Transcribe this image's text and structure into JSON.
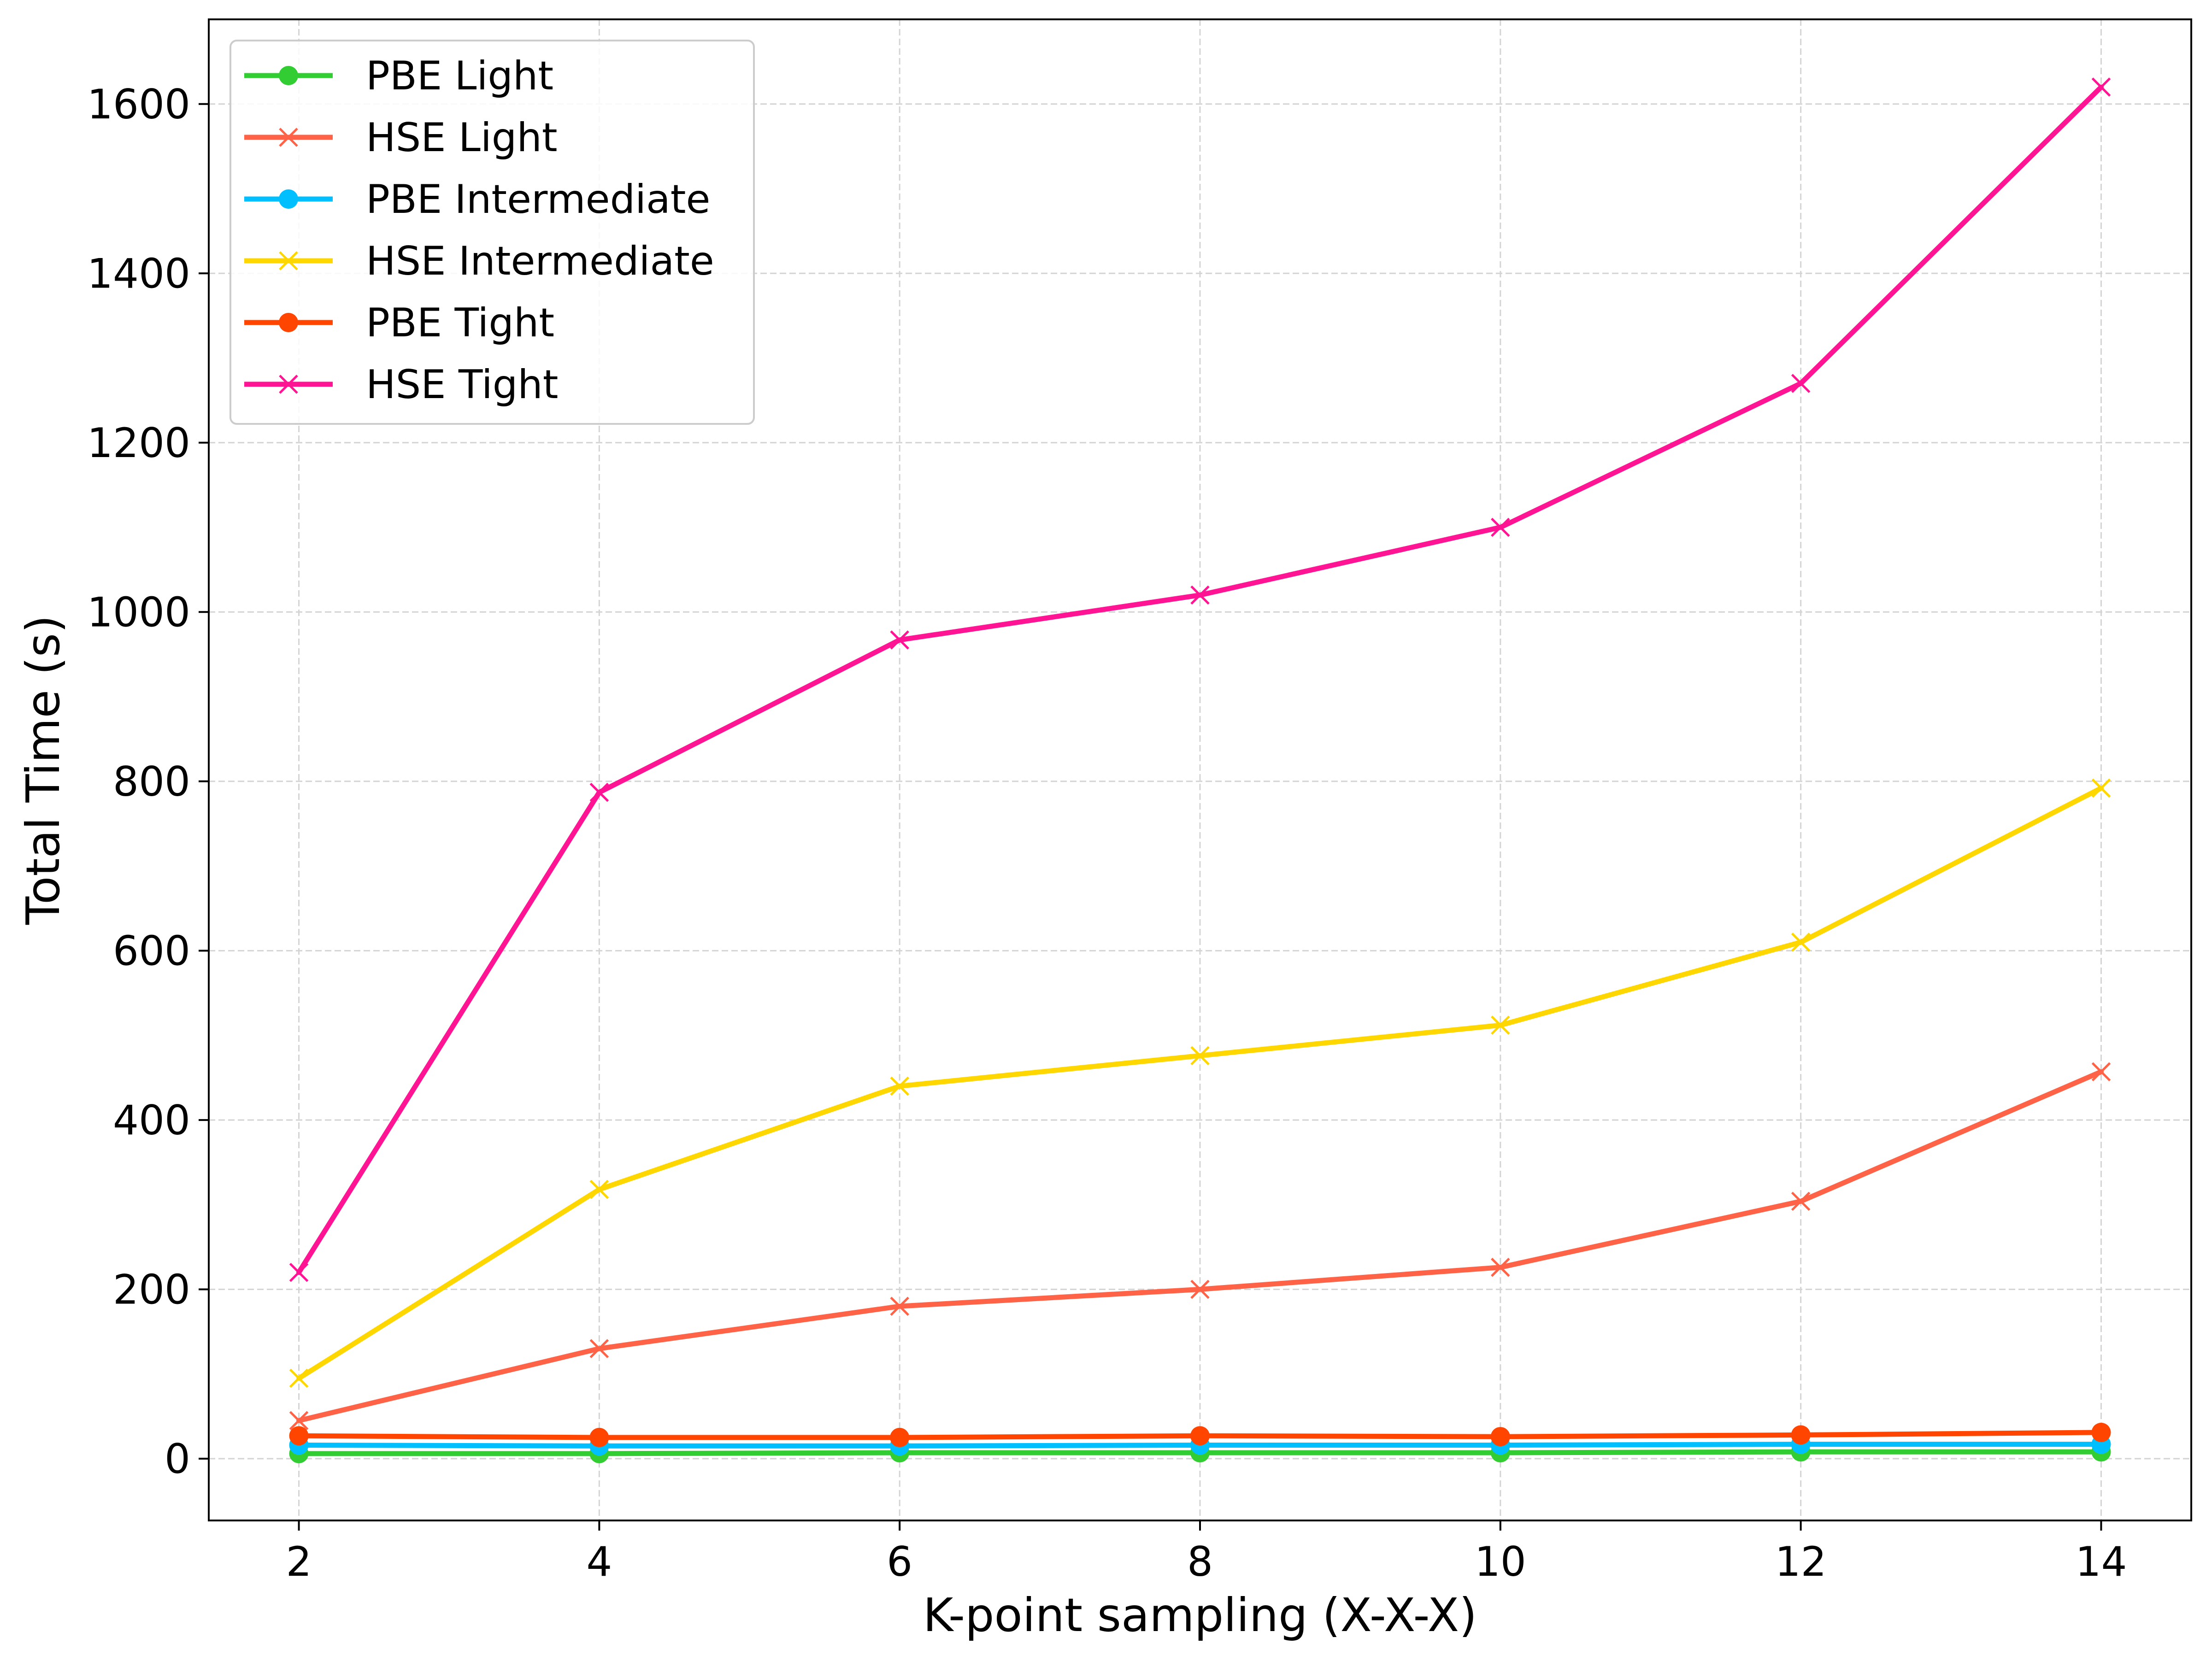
{
  "chart_data": {
    "type": "line",
    "title": "",
    "xlabel": "K-point sampling (X-X-X)",
    "ylabel": "Total Time (s)",
    "x": [
      2,
      4,
      6,
      8,
      10,
      12,
      14
    ],
    "xticks": [
      "2",
      "4",
      "6",
      "8",
      "10",
      "12",
      "14"
    ],
    "yticks": [
      "0",
      "200",
      "400",
      "600",
      "800",
      "1000",
      "1200",
      "1400",
      "1600"
    ],
    "xlim": [
      1.4,
      14.6
    ],
    "ylim": [
      -73,
      1700
    ],
    "grid": true,
    "legend_position": "top-left",
    "series": [
      {
        "name": "PBE Light",
        "color": "#32cd32",
        "marker": "circle",
        "values": [
          6,
          6,
          7,
          7,
          7,
          8,
          8
        ]
      },
      {
        "name": "HSE Light",
        "color": "#ff6347",
        "marker": "x",
        "values": [
          45,
          130,
          180,
          200,
          226,
          304,
          457
        ]
      },
      {
        "name": "PBE Intermediate",
        "color": "#00bfff",
        "marker": "circle",
        "values": [
          16,
          15,
          15,
          16,
          16,
          17,
          17
        ]
      },
      {
        "name": "HSE Intermediate",
        "color": "#ffd700",
        "marker": "x",
        "values": [
          95,
          318,
          440,
          476,
          512,
          610,
          792
        ]
      },
      {
        "name": "PBE Tight",
        "color": "#ff4500",
        "marker": "circle",
        "values": [
          27,
          25,
          25,
          27,
          26,
          28,
          31
        ]
      },
      {
        "name": "HSE Tight",
        "color": "#ff1493",
        "marker": "x",
        "values": [
          220,
          787,
          967,
          1020,
          1100,
          1270,
          1620
        ]
      }
    ]
  }
}
